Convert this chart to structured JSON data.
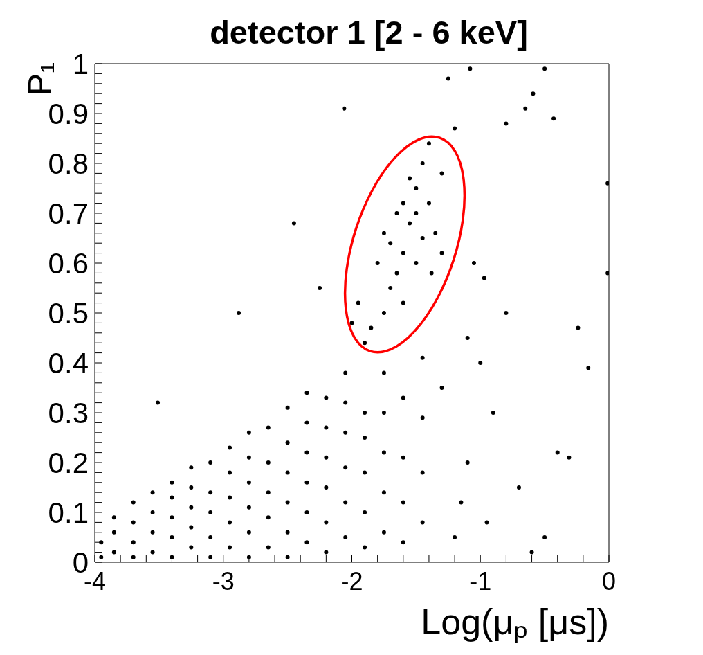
{
  "chart_data": {
    "type": "scatter",
    "title": "detector 1 [2 - 6 keV]",
    "xlabel": "Log(μₚ [μs])",
    "ylabel": "P₁",
    "marker": "circle",
    "xlim": [
      -4,
      0
    ],
    "ylim": [
      0,
      1
    ],
    "xticks": [
      -4,
      {
        "value": -3.8,
        "label": null
      },
      {
        "value": -3.6,
        "label": null
      },
      {
        "value": -3.4,
        "label": null
      },
      {
        "value": -3.2,
        "label": null
      },
      -3,
      {
        "value": -2.8,
        "label": null
      },
      {
        "value": -2.6,
        "label": null
      },
      {
        "value": -2.4,
        "label": null
      },
      {
        "value": -2.2,
        "label": null
      },
      -2,
      {
        "value": -1.8,
        "label": null
      },
      {
        "value": -1.6,
        "label": null
      },
      {
        "value": -1.4,
        "label": null
      },
      {
        "value": -1.2,
        "label": null
      },
      -1,
      {
        "value": -0.8,
        "label": null
      },
      {
        "value": -0.6,
        "label": null
      },
      {
        "value": -0.4,
        "label": null
      },
      {
        "value": -0.2,
        "label": null
      },
      0
    ],
    "yticks": [
      0,
      {
        "value": 0.02,
        "label": null
      },
      {
        "value": 0.04,
        "label": null
      },
      {
        "value": 0.06,
        "label": null
      },
      {
        "value": 0.08,
        "label": null
      },
      0.1,
      {
        "value": 0.12,
        "label": null
      },
      {
        "value": 0.14,
        "label": null
      },
      {
        "value": 0.16,
        "label": null
      },
      {
        "value": 0.18,
        "label": null
      },
      0.2,
      {
        "value": 0.22,
        "label": null
      },
      {
        "value": 0.24,
        "label": null
      },
      {
        "value": 0.26,
        "label": null
      },
      {
        "value": 0.28,
        "label": null
      },
      0.3,
      {
        "value": 0.32,
        "label": null
      },
      {
        "value": 0.34,
        "label": null
      },
      {
        "value": 0.36,
        "label": null
      },
      {
        "value": 0.38,
        "label": null
      },
      0.4,
      {
        "value": 0.42,
        "label": null
      },
      {
        "value": 0.44,
        "label": null
      },
      {
        "value": 0.46,
        "label": null
      },
      {
        "value": 0.48,
        "label": null
      },
      0.5,
      {
        "value": 0.52,
        "label": null
      },
      {
        "value": 0.54,
        "label": null
      },
      {
        "value": 0.56,
        "label": null
      },
      {
        "value": 0.58,
        "label": null
      },
      0.6,
      {
        "value": 0.62,
        "label": null
      },
      {
        "value": 0.64,
        "label": null
      },
      {
        "value": 0.66,
        "label": null
      },
      {
        "value": 0.68,
        "label": null
      },
      0.7,
      {
        "value": 0.72,
        "label": null
      },
      {
        "value": 0.74,
        "label": null
      },
      {
        "value": 0.76,
        "label": null
      },
      {
        "value": 0.78,
        "label": null
      },
      0.8,
      {
        "value": 0.82,
        "label": null
      },
      {
        "value": 0.84,
        "label": null
      },
      {
        "value": 0.86,
        "label": null
      },
      {
        "value": 0.88,
        "label": null
      },
      0.9,
      {
        "value": 0.92,
        "label": null
      },
      {
        "value": 0.94,
        "label": null
      },
      {
        "value": 0.96,
        "label": null
      },
      {
        "value": 0.98,
        "label": null
      },
      1
    ],
    "series": [
      {
        "color": "#000000",
        "x": [
          -3.95,
          -3.95,
          -3.85,
          -3.85,
          -3.85,
          -3.7,
          -3.7,
          -3.7,
          -3.7,
          -3.55,
          -3.55,
          -3.55,
          -3.55,
          -3.4,
          -3.4,
          -3.4,
          -3.4,
          -3.4,
          -3.25,
          -3.25,
          -3.25,
          -3.25,
          -3.25,
          -3.1,
          -3.1,
          -3.1,
          -3.1,
          -3.1,
          -2.95,
          -2.95,
          -2.95,
          -2.95,
          -2.95,
          -2.8,
          -2.8,
          -2.8,
          -2.8,
          -2.8,
          -2.8,
          -2.65,
          -2.65,
          -2.65,
          -2.65,
          -2.65,
          -2.5,
          -2.5,
          -2.5,
          -2.5,
          -2.5,
          -2.5,
          -2.35,
          -2.35,
          -2.35,
          -2.35,
          -2.35,
          -2.35,
          -2.2,
          -2.2,
          -2.2,
          -2.2,
          -2.2,
          -2.2,
          -2.05,
          -2.05,
          -2.05,
          -2.05,
          -2.05,
          -2.05,
          -1.9,
          -1.9,
          -1.9,
          -1.9,
          -1.9,
          -1.75,
          -1.75,
          -1.75,
          -1.75,
          -1.75,
          -1.6,
          -1.6,
          -1.6,
          -1.6,
          -1.45,
          -1.45,
          -1.45,
          -1.45,
          -1.55,
          -1.5,
          -1.45,
          -1.6,
          -1.65,
          -1.7,
          -1.75,
          -1.85,
          -1.4,
          -1.35,
          -1.3,
          -1.65,
          -1.7,
          -1.5,
          -1.45,
          -1.55,
          -1.4,
          -1.6,
          -1.8,
          -1.95,
          -1.9,
          -1.3,
          -1.5,
          -1.6,
          -1.38,
          -1.75,
          -2.0,
          -1.08,
          -2.06,
          -0.59,
          -0.43,
          -0.65,
          -0.5,
          -1.2,
          -0.8,
          -0.97,
          -0.01,
          -0.01,
          -0.16,
          -0.24,
          -0.31,
          -1.0,
          -0.9,
          -1.1,
          -0.7,
          -0.5,
          -1.2,
          -0.8,
          -2.45,
          -3.51,
          -2.88,
          -2.25,
          -1.1,
          -1.3,
          -1.15,
          -0.95,
          -0.6,
          -0.4,
          -1.05,
          -1.25
        ],
        "values": [
          0.01,
          0.04,
          0.02,
          0.06,
          0.09,
          0.01,
          0.04,
          0.08,
          0.12,
          0.02,
          0.06,
          0.1,
          0.14,
          0.01,
          0.05,
          0.09,
          0.13,
          0.16,
          0.03,
          0.07,
          0.11,
          0.15,
          0.19,
          0.01,
          0.05,
          0.1,
          0.14,
          0.2,
          0.03,
          0.08,
          0.13,
          0.18,
          0.23,
          0.01,
          0.06,
          0.11,
          0.16,
          0.21,
          0.26,
          0.03,
          0.09,
          0.14,
          0.2,
          0.27,
          0.01,
          0.06,
          0.12,
          0.18,
          0.24,
          0.31,
          0.04,
          0.1,
          0.16,
          0.22,
          0.28,
          0.34,
          0.02,
          0.08,
          0.15,
          0.21,
          0.27,
          0.33,
          0.05,
          0.12,
          0.19,
          0.26,
          0.32,
          0.38,
          0.03,
          0.1,
          0.18,
          0.25,
          0.3,
          0.06,
          0.14,
          0.22,
          0.3,
          0.38,
          0.04,
          0.12,
          0.21,
          0.33,
          0.08,
          0.18,
          0.29,
          0.41,
          0.68,
          0.75,
          0.8,
          0.62,
          0.58,
          0.55,
          0.5,
          0.47,
          0.72,
          0.66,
          0.78,
          0.7,
          0.64,
          0.6,
          0.65,
          0.77,
          0.84,
          0.52,
          0.6,
          0.52,
          0.44,
          0.62,
          0.7,
          0.72,
          0.58,
          0.66,
          0.48,
          0.99,
          0.91,
          0.94,
          0.89,
          0.91,
          0.99,
          0.87,
          0.88,
          0.57,
          0.76,
          0.58,
          0.39,
          0.47,
          0.21,
          0.4,
          0.3,
          0.2,
          0.15,
          0.05,
          0.05,
          0.5,
          0.68,
          0.32,
          0.5,
          0.55,
          0.45,
          0.35,
          0.12,
          0.08,
          0.02,
          0.22,
          0.6,
          0.97
        ]
      }
    ]
  }
}
